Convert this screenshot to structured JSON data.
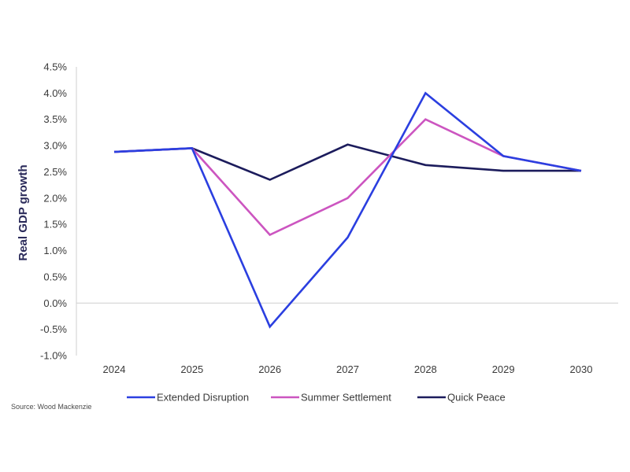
{
  "chart_data": {
    "type": "line",
    "categories": [
      "2024",
      "2025",
      "2026",
      "2027",
      "2028",
      "2029",
      "2030"
    ],
    "ylabel": "Real GDP growth",
    "ylim": [
      -1.0,
      4.5
    ],
    "yticks": [
      "4.5%",
      "4.0%",
      "3.5%",
      "3.0%",
      "2.5%",
      "2.0%",
      "1.5%",
      "1.0%",
      "0.5%",
      "0.0%",
      "-0.5%",
      "-1.0%"
    ],
    "ytick_values": [
      4.5,
      4.0,
      3.5,
      3.0,
      2.5,
      2.0,
      1.5,
      1.0,
      0.5,
      0.0,
      -0.5,
      -1.0
    ],
    "grid": false,
    "legend_position": "bottom",
    "series": [
      {
        "name": "Extended Disruption",
        "color": "#2b3fe0",
        "values": [
          2.88,
          2.95,
          -0.45,
          1.25,
          4.0,
          2.8,
          2.52
        ]
      },
      {
        "name": "Summer Settlement",
        "color": "#cc55c0",
        "values": [
          2.88,
          2.95,
          1.3,
          2.0,
          3.5,
          2.8,
          2.52
        ]
      },
      {
        "name": "Quick Peace",
        "color": "#1c1c5c",
        "values": [
          2.88,
          2.95,
          2.35,
          3.02,
          2.63,
          2.52,
          2.52
        ]
      }
    ],
    "source": "Source: Wood Mackenzie"
  }
}
